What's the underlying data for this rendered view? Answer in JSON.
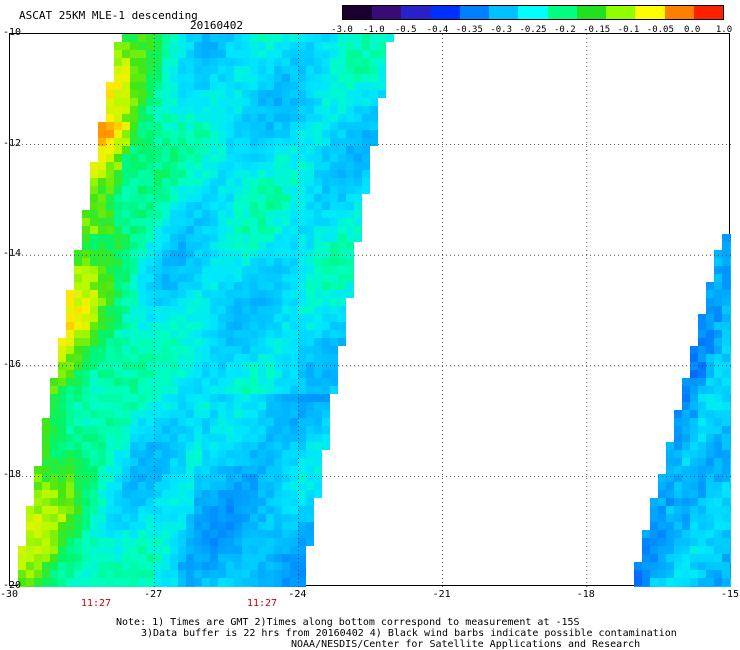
{
  "header": {
    "title": "ASCAT 25KM MLE-1 descending",
    "date": "20160402"
  },
  "colorbar": {
    "labels": [
      "-3.0",
      "-1.0",
      "-0.5",
      "-0.4",
      "-0.35",
      "-0.3",
      "-0.25",
      "-0.2",
      "-0.15",
      "-0.1",
      "-0.05",
      "0.0",
      "1.0"
    ],
    "colors": [
      "#1a0030",
      "#3a0a78",
      "#2a20c8",
      "#0030ff",
      "#0080ff",
      "#00c0ff",
      "#00ffff",
      "#00ff80",
      "#20e020",
      "#90ff00",
      "#ffff00",
      "#ff8000",
      "#ff2000"
    ]
  },
  "map": {
    "lat_labels": [
      "-10",
      "-12",
      "-14",
      "-16",
      "-18",
      "-20"
    ],
    "lon_labels": [
      "-30",
      "-27",
      "-24",
      "-21",
      "-18",
      "-15"
    ],
    "time_labels": [
      "11:27",
      "11:27"
    ]
  },
  "notes": {
    "line1": "Note: 1) Times are GMT 2)Times along bottom correspond to measurement at -15S",
    "line2": "3)Data buffer is 22 hrs from 20160402 4) Black wind barbs indicate possible contamination",
    "line3": "NOAA/NESDIS/Center for Satellite Applications and Research"
  }
}
